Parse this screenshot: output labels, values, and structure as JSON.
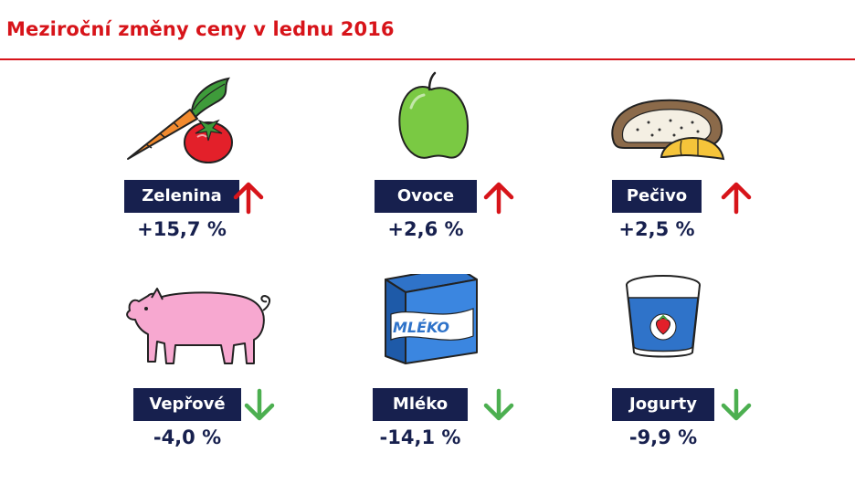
{
  "title": "Meziroční změny ceny v lednu 2016",
  "colors": {
    "accent": "#d7141a",
    "navy": "#17204e",
    "up": "#d7141a",
    "down": "#4caf50"
  },
  "items": [
    {
      "label": "Zelenina",
      "value": "+15,7 %",
      "direction": "up",
      "icon": "vegetables-icon"
    },
    {
      "label": "Ovoce",
      "value": "+2,6 %",
      "direction": "up",
      "icon": "apple-icon"
    },
    {
      "label": "Pečivo",
      "value": "+2,5 %",
      "direction": "up",
      "icon": "bread-icon"
    },
    {
      "label": "Vepřové",
      "value": "-4,0 %",
      "direction": "down",
      "icon": "pig-icon"
    },
    {
      "label": "Mléko",
      "value": "-14,1 %",
      "direction": "down",
      "icon": "milk-carton-icon",
      "carton_text": "MLÉKO"
    },
    {
      "label": "Jogurty",
      "value": "-9,9 %",
      "direction": "down",
      "icon": "yogurt-icon"
    }
  ]
}
